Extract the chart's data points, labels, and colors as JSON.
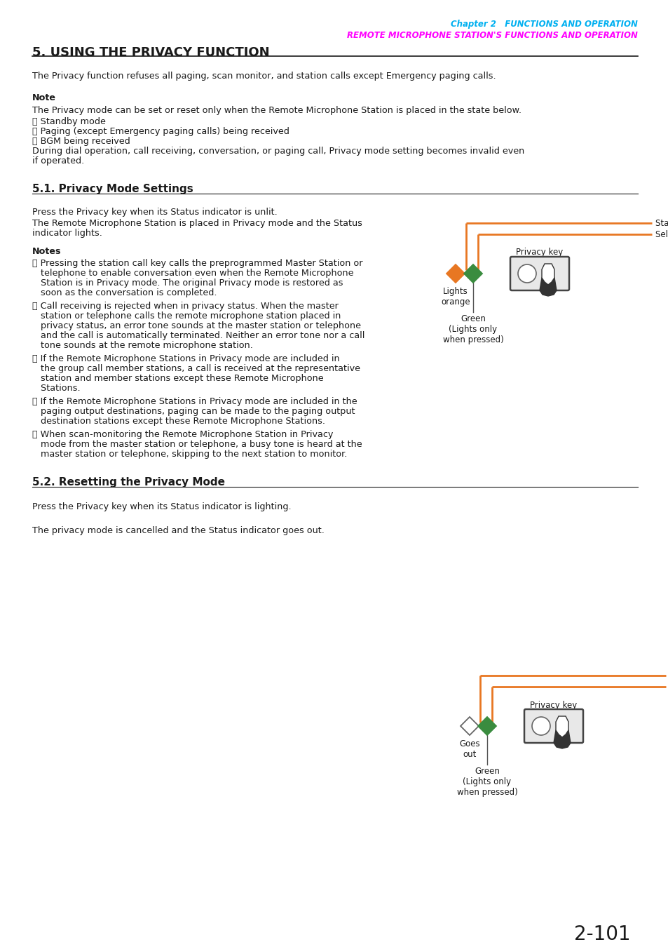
{
  "page_bg": "#ffffff",
  "header_line1": "Chapter 2   FUNCTIONS AND OPERATION",
  "header_line1_color": "#00b0f0",
  "header_line2": "REMOTE MICROPHONE STATION'S FUNCTIONS AND OPERATION",
  "header_line2_color": "#ff00ff",
  "section_title": "5. USING THE PRIVACY FUNCTION",
  "orange_color": "#e87722",
  "green_color": "#3a8c3f",
  "text_fontsize": 9.2,
  "heading_fontsize": 11.0,
  "section_fontsize": 13.0,
  "page_number": "2-101"
}
